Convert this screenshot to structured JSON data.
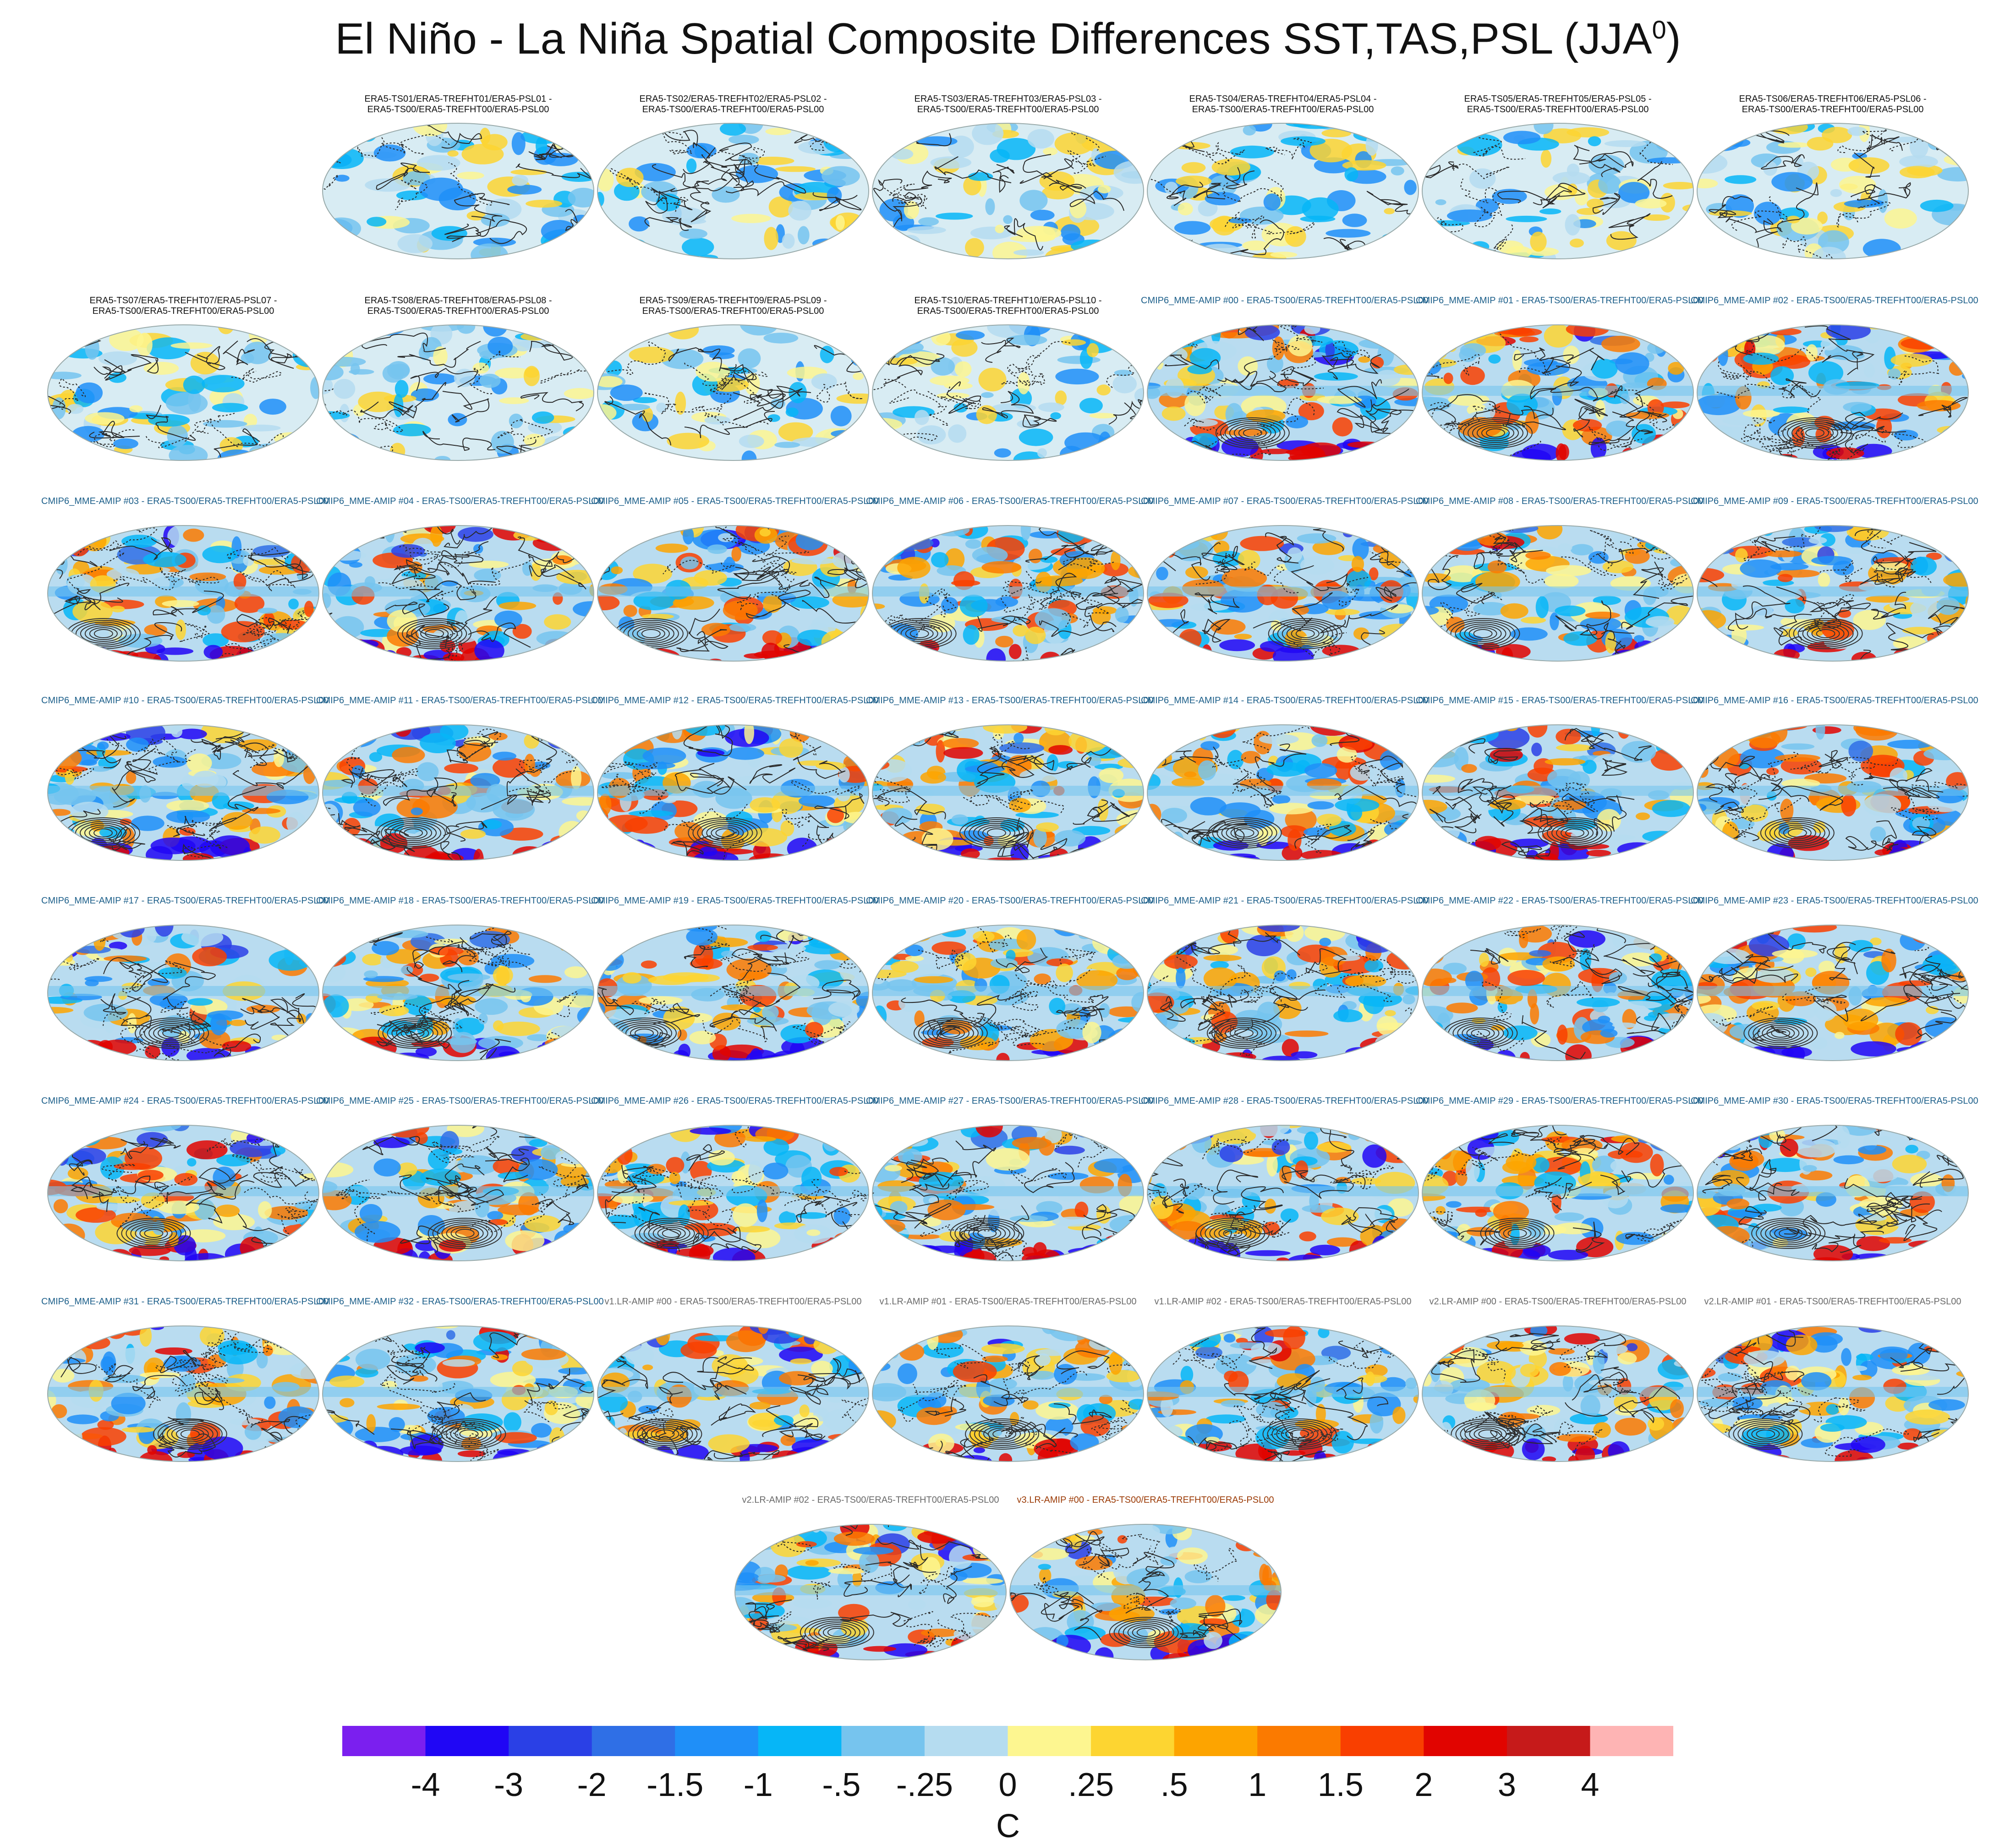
{
  "title": "El Niño - La Niña Spatial Composite Differences SST,TAS,PSL (JJA",
  "title_sup": "0",
  "title_close": ")",
  "panels": [
    {
      "line1": "ERA5-TS01/ERA5-TREFHT01/ERA5-PSL01 -",
      "line2": "ERA5-TS00/ERA5-TREFHT00/ERA5-PSL00",
      "kind": "era"
    },
    {
      "line1": "ERA5-TS02/ERA5-TREFHT02/ERA5-PSL02 -",
      "line2": "ERA5-TS00/ERA5-TREFHT00/ERA5-PSL00",
      "kind": "era"
    },
    {
      "line1": "ERA5-TS03/ERA5-TREFHT03/ERA5-PSL03 -",
      "line2": "ERA5-TS00/ERA5-TREFHT00/ERA5-PSL00",
      "kind": "era"
    },
    {
      "line1": "ERA5-TS04/ERA5-TREFHT04/ERA5-PSL04 -",
      "line2": "ERA5-TS00/ERA5-TREFHT00/ERA5-PSL00",
      "kind": "era"
    },
    {
      "line1": "ERA5-TS05/ERA5-TREFHT05/ERA5-PSL05 -",
      "line2": "ERA5-TS00/ERA5-TREFHT00/ERA5-PSL00",
      "kind": "era"
    },
    {
      "line1": "ERA5-TS06/ERA5-TREFHT06/ERA5-PSL06 -",
      "line2": "ERA5-TS00/ERA5-TREFHT00/ERA5-PSL00",
      "kind": "era"
    },
    {
      "line1": "ERA5-TS07/ERA5-TREFHT07/ERA5-PSL07 -",
      "line2": "ERA5-TS00/ERA5-TREFHT00/ERA5-PSL00",
      "kind": "era"
    },
    {
      "line1": "ERA5-TS08/ERA5-TREFHT08/ERA5-PSL08 -",
      "line2": "ERA5-TS00/ERA5-TREFHT00/ERA5-PSL00",
      "kind": "era"
    },
    {
      "line1": "ERA5-TS09/ERA5-TREFHT09/ERA5-PSL09 -",
      "line2": "ERA5-TS00/ERA5-TREFHT00/ERA5-PSL00",
      "kind": "era"
    },
    {
      "line1": "ERA5-TS10/ERA5-TREFHT10/ERA5-PSL10 -",
      "line2": "ERA5-TS00/ERA5-TREFHT00/ERA5-PSL00",
      "kind": "era"
    },
    {
      "line1": "CMIP6_MME-AMIP  #00 - ERA5-TS00/ERA5-TREFHT00/ERA5-PSL00",
      "kind": "cmip"
    },
    {
      "line1": "CMIP6_MME-AMIP  #01 - ERA5-TS00/ERA5-TREFHT00/ERA5-PSL00",
      "kind": "cmip"
    },
    {
      "line1": "CMIP6_MME-AMIP  #02 - ERA5-TS00/ERA5-TREFHT00/ERA5-PSL00",
      "kind": "cmip"
    },
    {
      "line1": "CMIP6_MME-AMIP  #03 - ERA5-TS00/ERA5-TREFHT00/ERA5-PSL00",
      "kind": "cmip"
    },
    {
      "line1": "CMIP6_MME-AMIP  #04 - ERA5-TS00/ERA5-TREFHT00/ERA5-PSL00",
      "kind": "cmip"
    },
    {
      "line1": "CMIP6_MME-AMIP  #05 - ERA5-TS00/ERA5-TREFHT00/ERA5-PSL00",
      "kind": "cmip"
    },
    {
      "line1": "CMIP6_MME-AMIP  #06 - ERA5-TS00/ERA5-TREFHT00/ERA5-PSL00",
      "kind": "cmip"
    },
    {
      "line1": "CMIP6_MME-AMIP  #07 - ERA5-TS00/ERA5-TREFHT00/ERA5-PSL00",
      "kind": "cmip"
    },
    {
      "line1": "CMIP6_MME-AMIP  #08 - ERA5-TS00/ERA5-TREFHT00/ERA5-PSL00",
      "kind": "cmip"
    },
    {
      "line1": "CMIP6_MME-AMIP  #09 - ERA5-TS00/ERA5-TREFHT00/ERA5-PSL00",
      "kind": "cmip"
    },
    {
      "line1": "CMIP6_MME-AMIP  #10 - ERA5-TS00/ERA5-TREFHT00/ERA5-PSL00",
      "kind": "cmip"
    },
    {
      "line1": "CMIP6_MME-AMIP  #11 - ERA5-TS00/ERA5-TREFHT00/ERA5-PSL00",
      "kind": "cmip"
    },
    {
      "line1": "CMIP6_MME-AMIP  #12 - ERA5-TS00/ERA5-TREFHT00/ERA5-PSL00",
      "kind": "cmip"
    },
    {
      "line1": "CMIP6_MME-AMIP  #13 - ERA5-TS00/ERA5-TREFHT00/ERA5-PSL00",
      "kind": "cmip"
    },
    {
      "line1": "CMIP6_MME-AMIP  #14 - ERA5-TS00/ERA5-TREFHT00/ERA5-PSL00",
      "kind": "cmip"
    },
    {
      "line1": "CMIP6_MME-AMIP  #15 - ERA5-TS00/ERA5-TREFHT00/ERA5-PSL00",
      "kind": "cmip"
    },
    {
      "line1": "CMIP6_MME-AMIP  #16 - ERA5-TS00/ERA5-TREFHT00/ERA5-PSL00",
      "kind": "cmip"
    },
    {
      "line1": "CMIP6_MME-AMIP  #17 - ERA5-TS00/ERA5-TREFHT00/ERA5-PSL00",
      "kind": "cmip"
    },
    {
      "line1": "CMIP6_MME-AMIP  #18 - ERA5-TS00/ERA5-TREFHT00/ERA5-PSL00",
      "kind": "cmip"
    },
    {
      "line1": "CMIP6_MME-AMIP  #19 - ERA5-TS00/ERA5-TREFHT00/ERA5-PSL00",
      "kind": "cmip"
    },
    {
      "line1": "CMIP6_MME-AMIP  #20 - ERA5-TS00/ERA5-TREFHT00/ERA5-PSL00",
      "kind": "cmip"
    },
    {
      "line1": "CMIP6_MME-AMIP  #21 - ERA5-TS00/ERA5-TREFHT00/ERA5-PSL00",
      "kind": "cmip"
    },
    {
      "line1": "CMIP6_MME-AMIP  #22 - ERA5-TS00/ERA5-TREFHT00/ERA5-PSL00",
      "kind": "cmip"
    },
    {
      "line1": "CMIP6_MME-AMIP  #23 - ERA5-TS00/ERA5-TREFHT00/ERA5-PSL00",
      "kind": "cmip"
    },
    {
      "line1": "CMIP6_MME-AMIP  #24 - ERA5-TS00/ERA5-TREFHT00/ERA5-PSL00",
      "kind": "cmip"
    },
    {
      "line1": "CMIP6_MME-AMIP  #25 - ERA5-TS00/ERA5-TREFHT00/ERA5-PSL00",
      "kind": "cmip"
    },
    {
      "line1": "CMIP6_MME-AMIP  #26 - ERA5-TS00/ERA5-TREFHT00/ERA5-PSL00",
      "kind": "cmip"
    },
    {
      "line1": "CMIP6_MME-AMIP  #27 - ERA5-TS00/ERA5-TREFHT00/ERA5-PSL00",
      "kind": "cmip"
    },
    {
      "line1": "CMIP6_MME-AMIP  #28 - ERA5-TS00/ERA5-TREFHT00/ERA5-PSL00",
      "kind": "cmip"
    },
    {
      "line1": "CMIP6_MME-AMIP  #29 - ERA5-TS00/ERA5-TREFHT00/ERA5-PSL00",
      "kind": "cmip"
    },
    {
      "line1": "CMIP6_MME-AMIP  #30 - ERA5-TS00/ERA5-TREFHT00/ERA5-PSL00",
      "kind": "cmip"
    },
    {
      "line1": "CMIP6_MME-AMIP  #31 - ERA5-TS00/ERA5-TREFHT00/ERA5-PSL00",
      "kind": "cmip"
    },
    {
      "line1": "CMIP6_MME-AMIP  #32 - ERA5-TS00/ERA5-TREFHT00/ERA5-PSL00",
      "kind": "cmip"
    },
    {
      "line1": "v1.LR-AMIP  #00 - ERA5-TS00/ERA5-TREFHT00/ERA5-PSL00",
      "kind": "v2"
    },
    {
      "line1": "v1.LR-AMIP  #01 - ERA5-TS00/ERA5-TREFHT00/ERA5-PSL00",
      "kind": "v2"
    },
    {
      "line1": "v1.LR-AMIP  #02 - ERA5-TS00/ERA5-TREFHT00/ERA5-PSL00",
      "kind": "v2"
    },
    {
      "line1": "v2.LR-AMIP  #00 - ERA5-TS00/ERA5-TREFHT00/ERA5-PSL00",
      "kind": "v2"
    },
    {
      "line1": "v2.LR-AMIP  #01 - ERA5-TS00/ERA5-TREFHT00/ERA5-PSL00",
      "kind": "v2"
    },
    {
      "line1": "v2.LR-AMIP  #02 - ERA5-TS00/ERA5-TREFHT00/ERA5-PSL00",
      "kind": "v2"
    },
    {
      "line1": "v3.LR-AMIP  #00 - ERA5-TS00/ERA5-TREFHT00/ERA5-PSL00",
      "kind": "v3"
    }
  ],
  "colorbar": {
    "labels": [
      "-4",
      "-3",
      "-2",
      "-1.5",
      "-1",
      "-.5",
      "-.25",
      "0",
      ".25",
      ".5",
      "1",
      "1.5",
      "2",
      "3",
      "4"
    ],
    "colors": [
      "#7b1fef",
      "#2006f5",
      "#2a40e6",
      "#2f6fe6",
      "#1f8ff8",
      "#06b6f7",
      "#76c4ee",
      "#b5dcf0",
      "#fdf690",
      "#fdd531",
      "#fda400",
      "#fb7a00",
      "#f93f00",
      "#e10400",
      "#c61a1a",
      "#feb4b4"
    ],
    "unit": "C"
  }
}
